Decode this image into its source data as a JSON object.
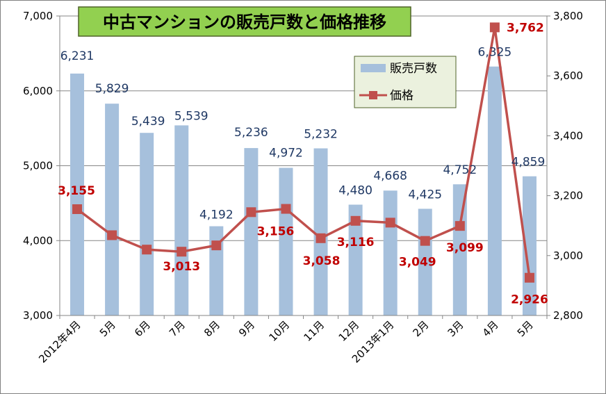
{
  "chart_data": {
    "type": "bar+line",
    "title": "中古マンションの販売戸数と価格推移",
    "categories": [
      "2012年4月",
      "5月",
      "6月",
      "7月",
      "8月",
      "9月",
      "10月",
      "11月",
      "12月",
      "2013年1月",
      "2月",
      "3月",
      "4月",
      "5月"
    ],
    "series": [
      {
        "name": "販売戸数",
        "type": "bar",
        "axis": "left",
        "values": [
          6231,
          5829,
          5439,
          5539,
          4192,
          5236,
          4972,
          5232,
          4480,
          4668,
          4425,
          4752,
          6325,
          4859
        ],
        "labels": [
          "6,231",
          "5,829",
          "5,439",
          "5,539",
          "4,192",
          "5,236",
          "4,972",
          "5,232",
          "4,480",
          "4,668",
          "4,425",
          "4,752",
          "6,325",
          "4,859"
        ]
      },
      {
        "name": "価格",
        "type": "line",
        "axis": "right",
        "values": [
          3155,
          3068,
          3020,
          3013,
          3034,
          3145,
          3156,
          3058,
          3116,
          3110,
          3049,
          3099,
          3762,
          2926
        ],
        "labels": [
          "3,155",
          "",
          "",
          "3,013",
          "",
          "",
          "3,156",
          "3,058",
          "3,116",
          "",
          "3,049",
          "3,099",
          "3,762",
          "2,926"
        ]
      }
    ],
    "y_left": {
      "range": [
        3000,
        7000
      ],
      "ticks": [
        "3,000",
        "4,000",
        "5,000",
        "6,000",
        "7,000"
      ],
      "tick_values": [
        3000,
        4000,
        5000,
        6000,
        7000
      ]
    },
    "y_right": {
      "range": [
        2800,
        3800
      ],
      "ticks": [
        "2,800",
        "3,000",
        "3,200",
        "3,400",
        "3,600",
        "3,800"
      ],
      "tick_values": [
        2800,
        3000,
        3200,
        3400,
        3600,
        3800
      ]
    },
    "grid": true,
    "legend": {
      "position": "top-right",
      "entries": [
        "販売戸数",
        "価格"
      ]
    },
    "colors": {
      "bar": "#A6C0DC",
      "line": "#C0504D",
      "bar_label": "#1F3864",
      "line_label": "#C00000",
      "title_bg": "#92D050",
      "legend_bg": "#EBF1DE"
    }
  }
}
